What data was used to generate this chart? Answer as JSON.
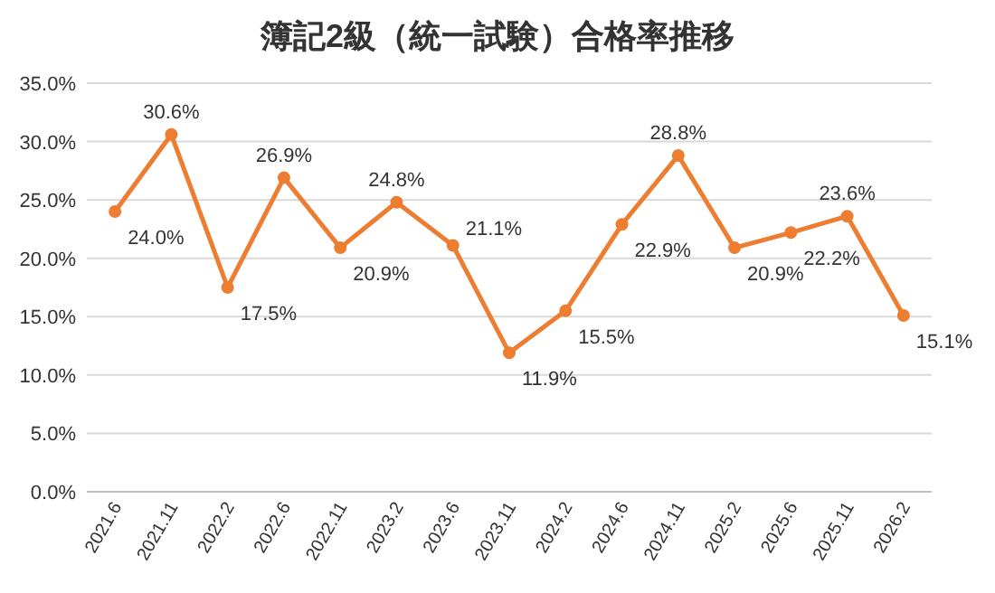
{
  "chart_data": {
    "type": "line",
    "title": "簿記2級（統一試験）合格率推移",
    "categories": [
      "2021.6",
      "2021.11",
      "2022.2",
      "2022.6",
      "2022.11",
      "2023.2",
      "2023.6",
      "2023.11",
      "2024.2",
      "2024.6",
      "2024.11",
      "2025.2",
      "2025.6",
      "2025.11",
      "2026.2"
    ],
    "series": [
      {
        "color": "#ed7d31",
        "values": [
          24.0,
          30.6,
          17.5,
          26.9,
          20.9,
          24.8,
          21.1,
          11.9,
          15.5,
          22.9,
          28.8,
          20.9,
          22.2,
          23.6,
          15.1
        ],
        "value_labels": [
          "24.0%",
          "30.6%",
          "17.5%",
          "26.9%",
          "20.9%",
          "24.8%",
          "21.1%",
          "11.9%",
          "15.5%",
          "22.9%",
          "28.8%",
          "20.9%",
          "22.2%",
          "23.6%",
          "15.1%"
        ]
      }
    ],
    "ylim": [
      0,
      35
    ],
    "yticks": [
      {
        "value": 0,
        "label": "0.0%"
      },
      {
        "value": 5,
        "label": "5.0%"
      },
      {
        "value": 10,
        "label": "10.0%"
      },
      {
        "value": 15,
        "label": "15.0%"
      },
      {
        "value": 20,
        "label": "20.0%"
      },
      {
        "value": 25,
        "label": "25.0%"
      },
      {
        "value": 30,
        "label": "30.0%"
      },
      {
        "value": 35,
        "label": "35.0%"
      }
    ],
    "grid": "y",
    "marker": "circle",
    "line_style": "solid"
  }
}
